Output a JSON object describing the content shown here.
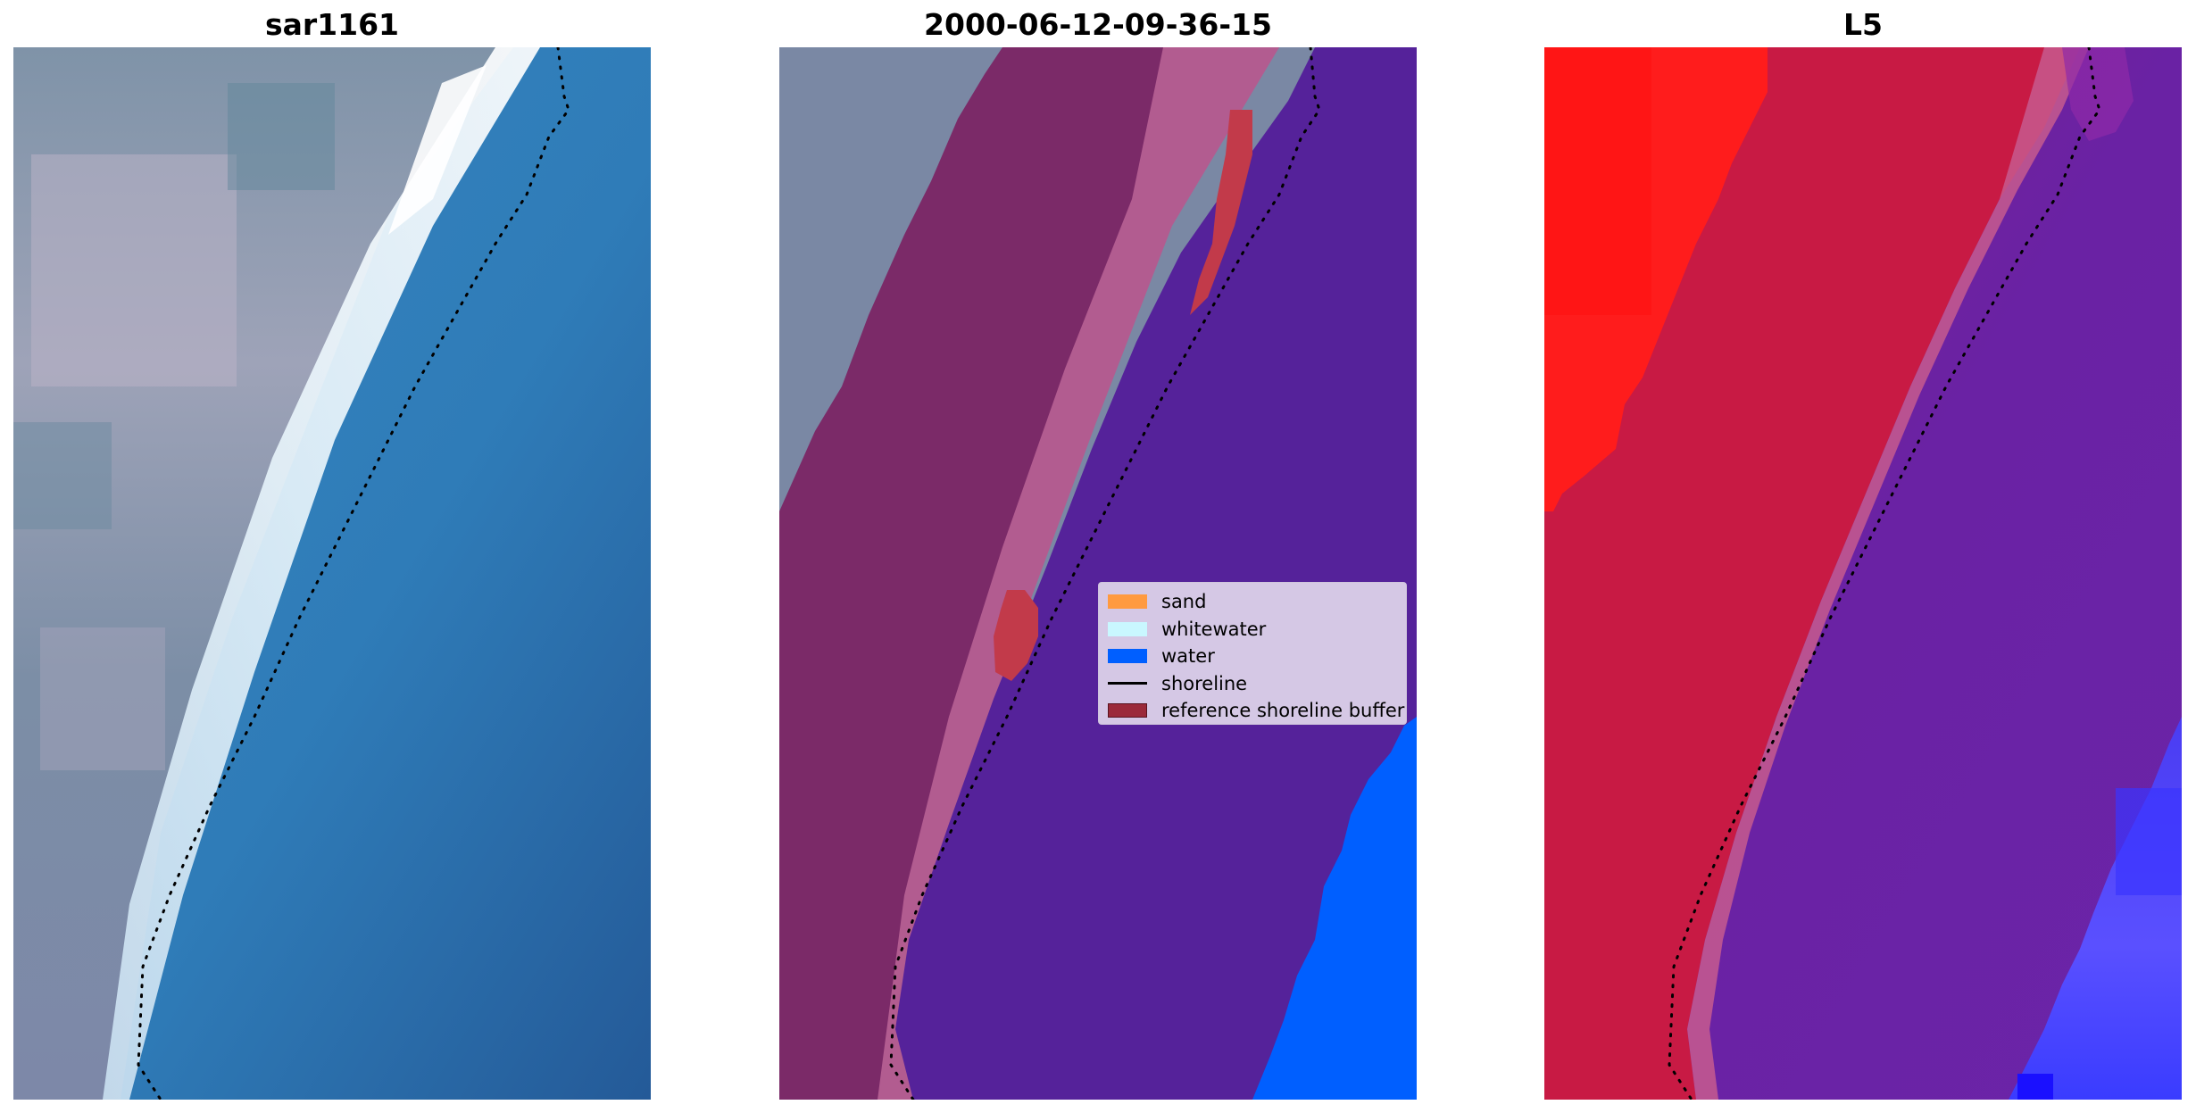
{
  "panels": [
    {
      "title": "sar1161"
    },
    {
      "title": "2000-06-12-09-36-15"
    },
    {
      "title": "L5"
    }
  ],
  "legend": {
    "items": [
      {
        "label": "sand",
        "color": "#ff9a40"
      },
      {
        "label": "whitewater",
        "color": "#c9f7ff"
      },
      {
        "label": "water",
        "color": "#005fff"
      },
      {
        "label": "shoreline",
        "color": "#000000"
      },
      {
        "label": "reference shoreline buffer",
        "color": "#9b2a3a"
      }
    ]
  },
  "colors": {
    "rgb_land": "#8d97aa",
    "rgb_foam": "#e8f2f8",
    "rgb_sea": "#2f7cb8",
    "class_land_overlay": "#7b2a68",
    "class_sand_zone": "#b25c90",
    "class_water_zone": "#55229a",
    "class_water": "#005fff",
    "class_buffer": "#c23a4a",
    "index_positive": "#ff1c1c",
    "index_mid": "#c81a44",
    "index_negative": "#6a22a4",
    "index_deep": "#3a3cff"
  }
}
